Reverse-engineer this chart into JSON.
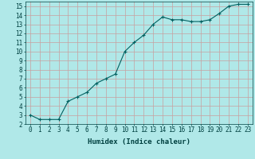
{
  "x": [
    0,
    1,
    2,
    3,
    4,
    5,
    6,
    7,
    8,
    9,
    10,
    11,
    12,
    13,
    14,
    15,
    16,
    17,
    18,
    19,
    20,
    21,
    22,
    23
  ],
  "y": [
    3.0,
    2.5,
    2.5,
    2.5,
    4.5,
    5.0,
    5.5,
    6.5,
    7.0,
    7.5,
    10.0,
    11.0,
    11.8,
    13.0,
    13.8,
    13.5,
    13.5,
    13.3,
    13.3,
    13.5,
    14.2,
    15.0,
    15.2,
    15.2
  ],
  "xlabel": "Humidex (Indice chaleur)",
  "xlim": [
    -0.5,
    23.5
  ],
  "ylim": [
    2,
    15.5
  ],
  "yticks": [
    2,
    3,
    4,
    5,
    6,
    7,
    8,
    9,
    10,
    11,
    12,
    13,
    14,
    15
  ],
  "xticks": [
    0,
    1,
    2,
    3,
    4,
    5,
    6,
    7,
    8,
    9,
    10,
    11,
    12,
    13,
    14,
    15,
    16,
    17,
    18,
    19,
    20,
    21,
    22,
    23
  ],
  "line_color": "#006060",
  "marker": "+",
  "bg_color": "#b0e8e8",
  "grid_color": "#c8a0a0",
  "font_color": "#004040",
  "label_fontsize": 6.5,
  "tick_fontsize": 5.5
}
